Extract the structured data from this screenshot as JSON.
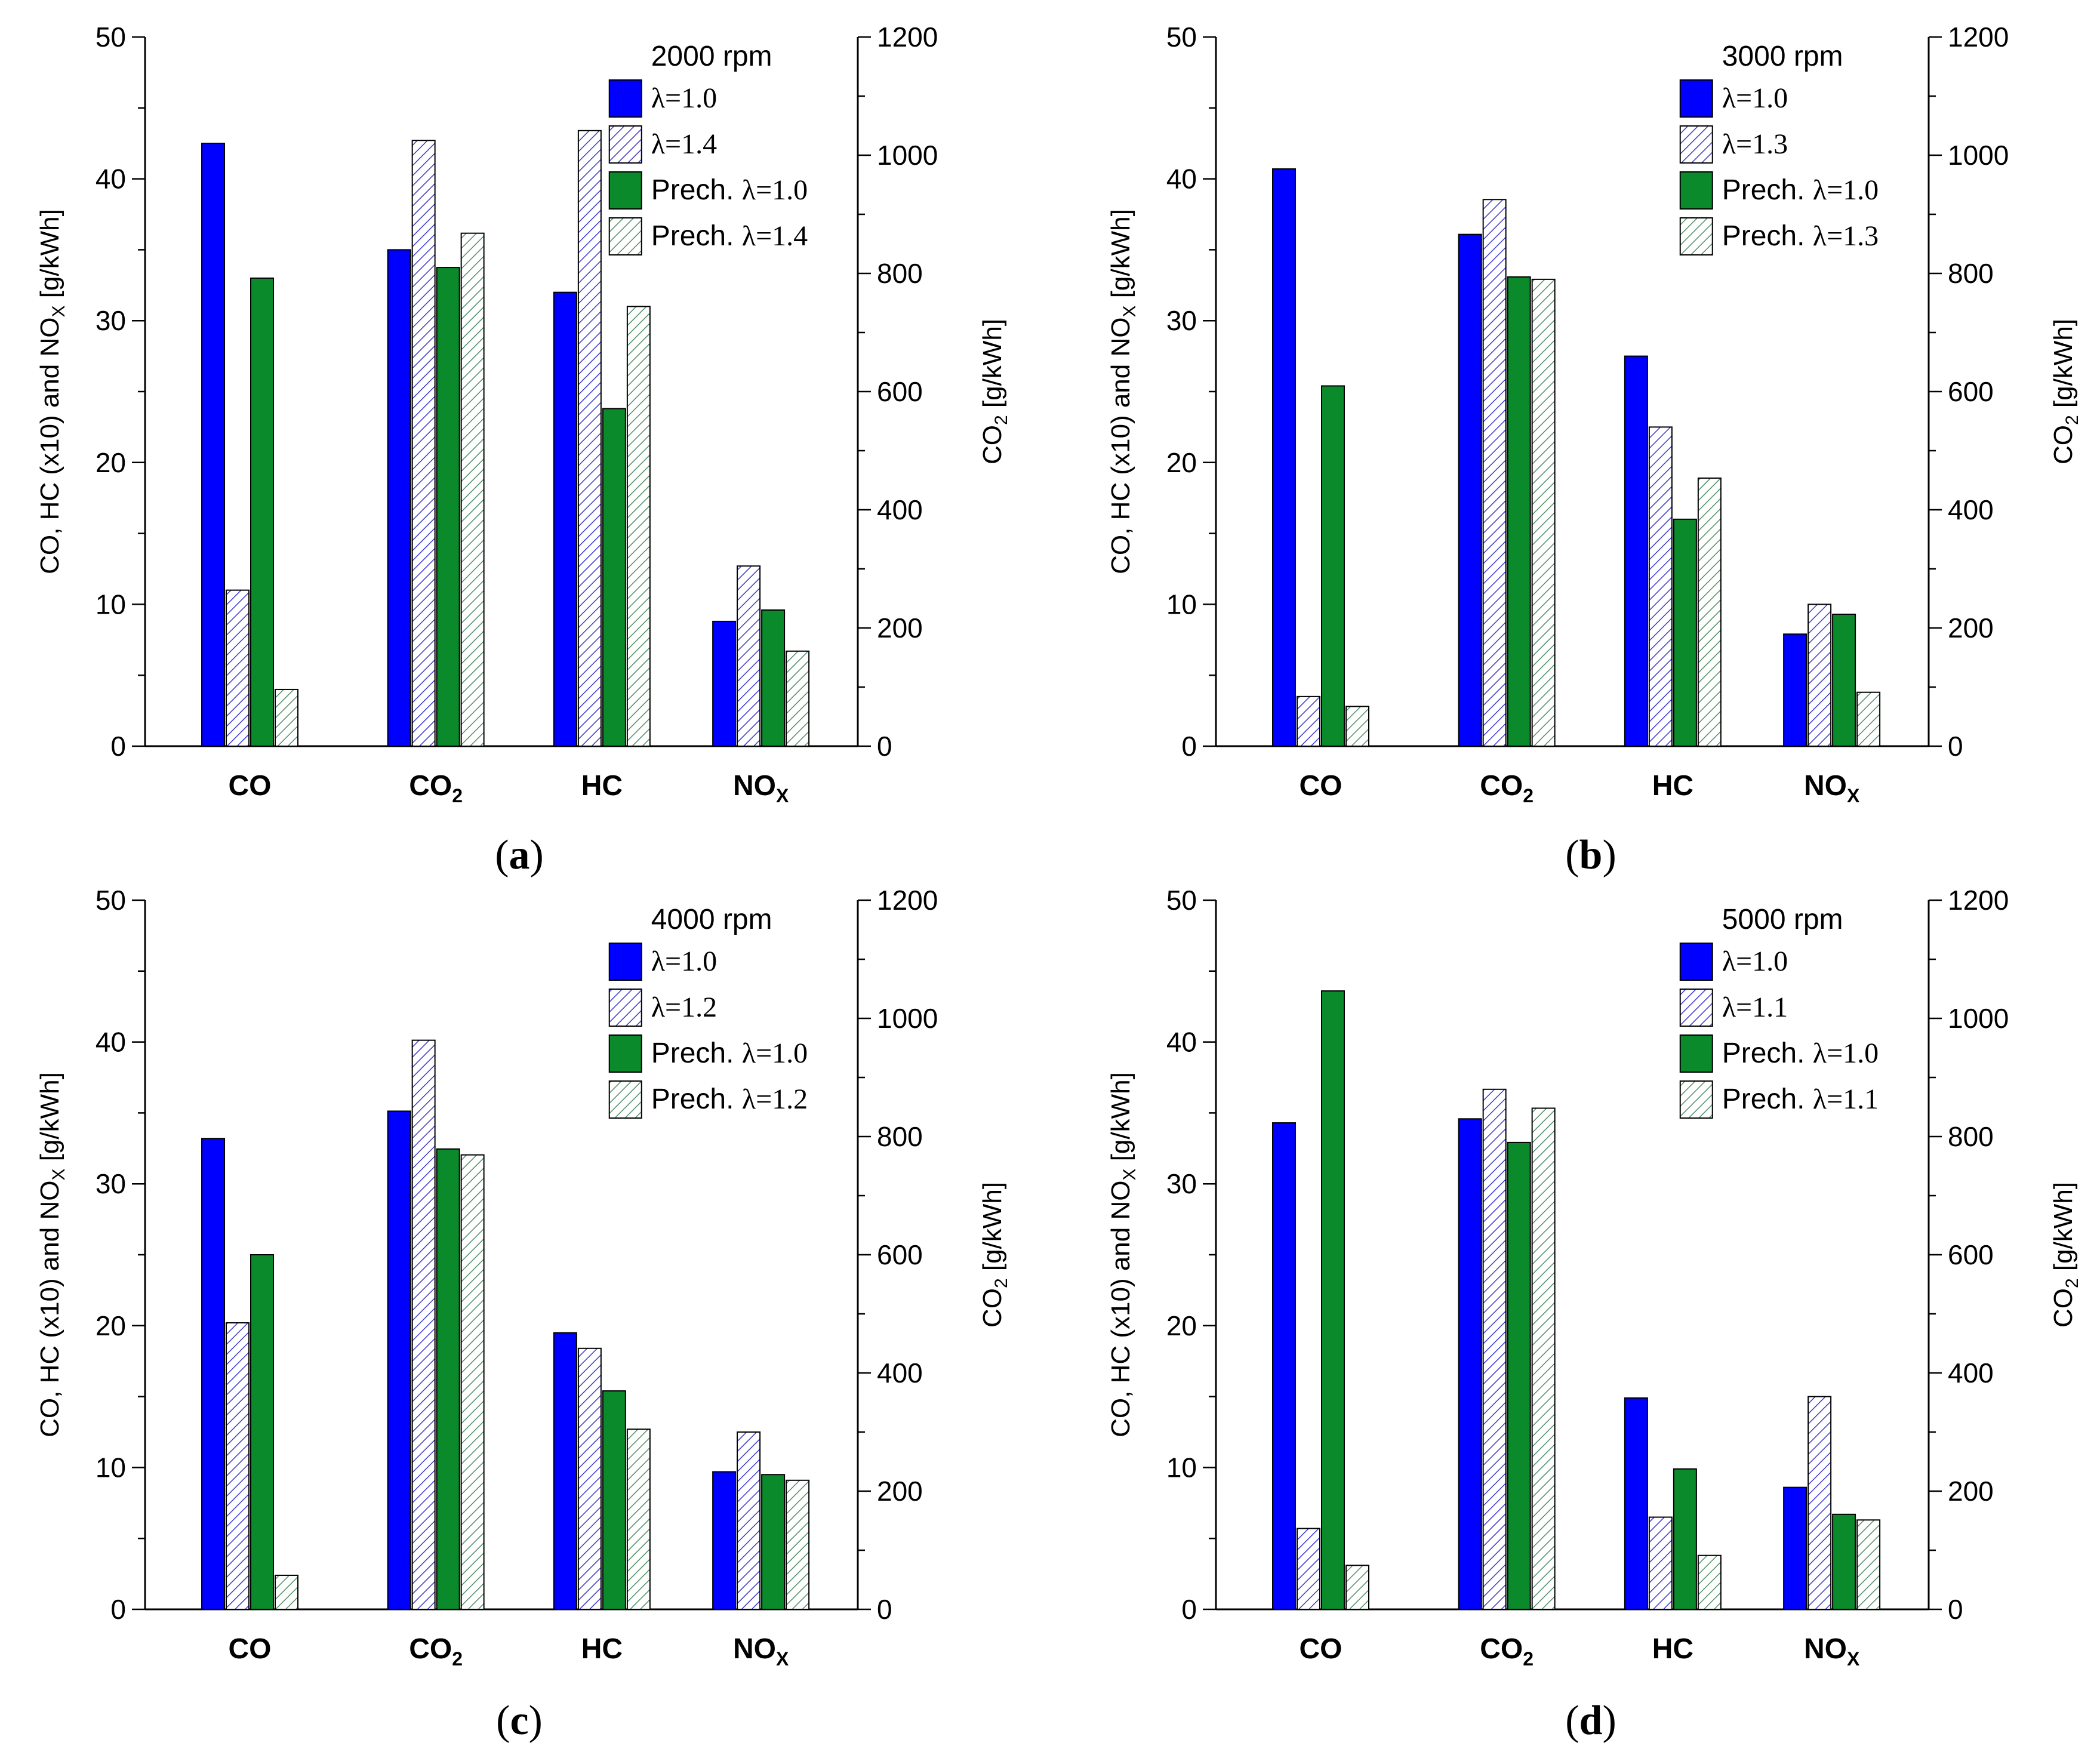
{
  "colors": {
    "lambda1": "#0000ff",
    "lambda_lean_stroke": "#3b3bd0",
    "prech1": "#0b8a2c",
    "prech_lean_stroke": "#4f8f64",
    "axis": "#000000"
  },
  "chart_data": [
    {
      "panel": "(a)",
      "panel_letter": "a",
      "type": "bar",
      "rpm_label": "2000 rpm",
      "categories": [
        "CO",
        "CO2",
        "HC",
        "NOX"
      ],
      "category_labels": [
        {
          "main": "CO",
          "sub": ""
        },
        {
          "main": "CO",
          "sub": "2"
        },
        {
          "main": "HC",
          "sub": ""
        },
        {
          "main": "NO",
          "sub": "X"
        }
      ],
      "series": [
        {
          "name": "λ=1.0",
          "style": "solid-blue",
          "values": [
            42.5,
            840,
            32.0,
            8.8
          ]
        },
        {
          "name": "λ=1.4",
          "style": "hatch-blue",
          "values": [
            11.0,
            1025,
            43.4,
            12.7
          ]
        },
        {
          "name": "Prech. λ=1.0",
          "style": "solid-green",
          "values": [
            33.0,
            810,
            23.8,
            9.6
          ]
        },
        {
          "name": "Prech. λ=1.4",
          "style": "hatch-green",
          "values": [
            4.0,
            868,
            31.0,
            6.7
          ]
        }
      ],
      "axis_for_category": [
        "left",
        "right",
        "left",
        "left"
      ],
      "ylabel": "CO, HC (x10) and NOX [g/kWh]",
      "ylabel2": "CO2 [g/kWh]",
      "ylim": [
        0,
        50
      ],
      "y2lim": [
        0,
        1200
      ],
      "yticks": [
        0,
        10,
        20,
        30,
        40,
        50
      ],
      "y2ticks": [
        0,
        200,
        400,
        600,
        800,
        1000,
        1200
      ],
      "legend_position": "top-right"
    },
    {
      "panel": "(b)",
      "panel_letter": "b",
      "type": "bar",
      "rpm_label": "3000 rpm",
      "categories": [
        "CO",
        "CO2",
        "HC",
        "NOX"
      ],
      "category_labels": [
        {
          "main": "CO",
          "sub": ""
        },
        {
          "main": "CO",
          "sub": "2"
        },
        {
          "main": "HC",
          "sub": ""
        },
        {
          "main": "NO",
          "sub": "X"
        }
      ],
      "series": [
        {
          "name": "λ=1.0",
          "style": "solid-blue",
          "values": [
            40.7,
            866,
            27.5,
            7.9
          ]
        },
        {
          "name": "λ=1.3",
          "style": "hatch-blue",
          "values": [
            3.5,
            925,
            22.5,
            10.0
          ]
        },
        {
          "name": "Prech. λ=1.0",
          "style": "solid-green",
          "values": [
            25.4,
            794,
            16.0,
            9.3
          ]
        },
        {
          "name": "Prech. λ=1.3",
          "style": "hatch-green",
          "values": [
            2.8,
            790,
            18.9,
            3.8
          ]
        }
      ],
      "axis_for_category": [
        "left",
        "right",
        "left",
        "left"
      ],
      "ylabel": "CO, HC (x10) and NOX [g/kWh]",
      "ylabel2": "CO2 [g/kWh]",
      "ylim": [
        0,
        50
      ],
      "y2lim": [
        0,
        1200
      ],
      "yticks": [
        0,
        10,
        20,
        30,
        40,
        50
      ],
      "y2ticks": [
        0,
        200,
        400,
        600,
        800,
        1000,
        1200
      ],
      "legend_position": "top-right"
    },
    {
      "panel": "(c)",
      "panel_letter": "c",
      "type": "bar",
      "rpm_label": "4000 rpm",
      "categories": [
        "CO",
        "CO2",
        "HC",
        "NOX"
      ],
      "category_labels": [
        {
          "main": "CO",
          "sub": ""
        },
        {
          "main": "CO",
          "sub": "2"
        },
        {
          "main": "HC",
          "sub": ""
        },
        {
          "main": "NO",
          "sub": "X"
        }
      ],
      "series": [
        {
          "name": "λ=1.0",
          "style": "solid-blue",
          "values": [
            33.2,
            843,
            19.5,
            9.7
          ]
        },
        {
          "name": "λ=1.2",
          "style": "hatch-blue",
          "values": [
            20.2,
            963,
            18.4,
            12.5
          ]
        },
        {
          "name": "Prech. λ=1.0",
          "style": "solid-green",
          "values": [
            25.0,
            779,
            15.4,
            9.5
          ]
        },
        {
          "name": "Prech. λ=1.2",
          "style": "hatch-green",
          "values": [
            2.4,
            769,
            12.7,
            9.1
          ]
        }
      ],
      "axis_for_category": [
        "left",
        "right",
        "left",
        "left"
      ],
      "ylabel": "CO, HC (x10) and NOX [g/kWh]",
      "ylabel2": "CO2 [g/kWh]",
      "ylim": [
        0,
        50
      ],
      "y2lim": [
        0,
        1200
      ],
      "yticks": [
        0,
        10,
        20,
        30,
        40,
        50
      ],
      "y2ticks": [
        0,
        200,
        400,
        600,
        800,
        1000,
        1200
      ],
      "legend_position": "top-right"
    },
    {
      "panel": "(d)",
      "panel_letter": "d",
      "type": "bar",
      "rpm_label": "5000 rpm",
      "categories": [
        "CO",
        "CO2",
        "HC",
        "NOX"
      ],
      "category_labels": [
        {
          "main": "CO",
          "sub": ""
        },
        {
          "main": "CO",
          "sub": "2"
        },
        {
          "main": "HC",
          "sub": ""
        },
        {
          "main": "NO",
          "sub": "X"
        }
      ],
      "series": [
        {
          "name": "λ=1.0",
          "style": "solid-blue",
          "values": [
            34.3,
            830,
            14.9,
            8.6
          ]
        },
        {
          "name": "λ=1.1",
          "style": "hatch-blue",
          "values": [
            5.7,
            880,
            6.5,
            15.0
          ]
        },
        {
          "name": "Prech. λ=1.0",
          "style": "solid-green",
          "values": [
            43.6,
            790,
            9.9,
            6.7
          ]
        },
        {
          "name": "Prech. λ=1.1",
          "style": "hatch-green",
          "values": [
            3.1,
            848,
            3.8,
            6.3
          ]
        }
      ],
      "axis_for_category": [
        "left",
        "right",
        "left",
        "left"
      ],
      "ylabel": "CO, HC (x10) and NOX [g/kWh]",
      "ylabel2": "CO2 [g/kWh]",
      "ylim": [
        0,
        50
      ],
      "y2lim": [
        0,
        1200
      ],
      "yticks": [
        0,
        10,
        20,
        30,
        40,
        50
      ],
      "y2ticks": [
        0,
        200,
        400,
        600,
        800,
        1000,
        1200
      ],
      "legend_position": "top-right"
    }
  ]
}
